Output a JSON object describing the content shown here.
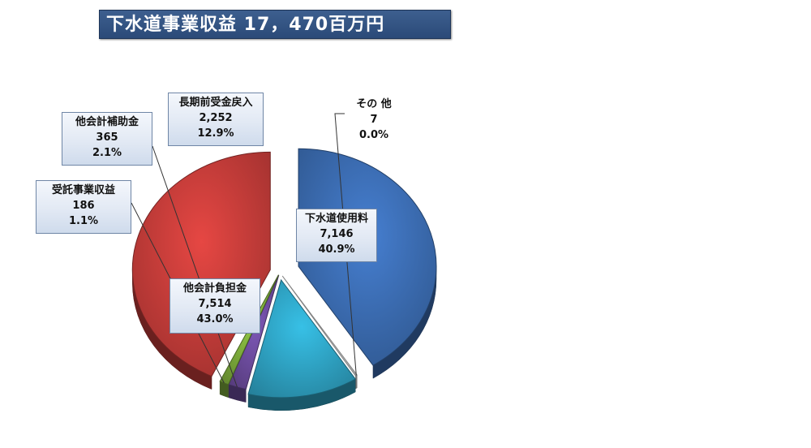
{
  "title": "下水道事業収益 17，470百万円",
  "chart_data": {
    "type": "pie",
    "slices": [
      {
        "name": "下水道使用料",
        "value": 7146,
        "value_label": "7,146",
        "percent_label": "40.9%",
        "color": "#3a6aae"
      },
      {
        "name": "その 他",
        "value": 7,
        "value_label": "7",
        "percent_label": "0.0%",
        "color": "#d8d8d8"
      },
      {
        "name": "長期前受金戻入",
        "value": 2252,
        "value_label": "2,252",
        "percent_label": "12.9%",
        "color": "#2ea0c0"
      },
      {
        "name": "他会計補助金",
        "value": 365,
        "value_label": "365",
        "percent_label": "2.1%",
        "color": "#6a4a9a"
      },
      {
        "name": "受託事業収益",
        "value": 186,
        "value_label": "186",
        "percent_label": "1.1%",
        "color": "#7aa83a"
      },
      {
        "name": "他会計負担金",
        "value": 7514,
        "value_label": "7,514",
        "percent_label": "43.0%",
        "color": "#c03b38"
      }
    ]
  }
}
